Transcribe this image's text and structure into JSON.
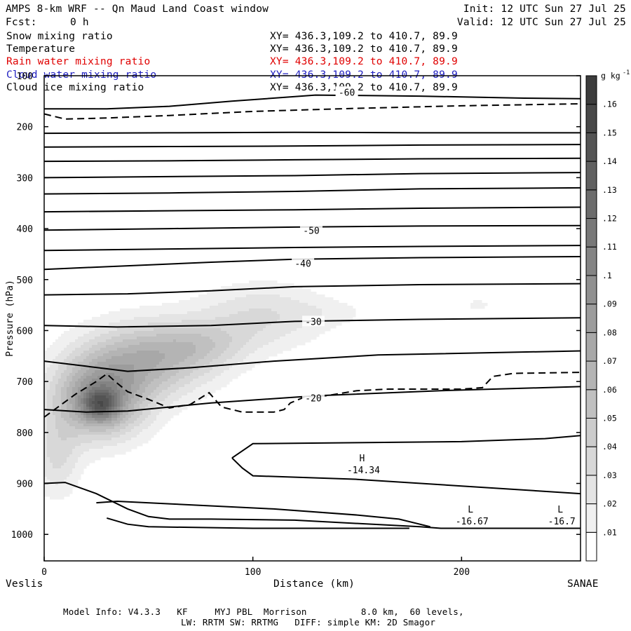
{
  "header": {
    "title": "AMPS 8-km WRF -- Qn Maud Land Coast window",
    "fcst_label": "Fcst:",
    "fcst_value": "0 h",
    "init": "Init: 12 UTC Sun 27 Jul 25",
    "valid": "Valid: 12 UTC Sun 27 Jul 25"
  },
  "fields": [
    {
      "name": "Snow mixing ratio",
      "xy": "XY= 436.3,109.2 to 410.7, 89.9",
      "color": "#000000"
    },
    {
      "name": "Temperature",
      "xy": "XY= 436.3,109.2 to 410.7, 89.9",
      "color": "#000000"
    },
    {
      "name": "Rain water mixing ratio",
      "xy": "XY= 436.3,109.2 to 410.7, 89.9",
      "color": "#e00000"
    },
    {
      "name": "Cloud water mixing ratio",
      "xy": "XY= 436.3,109.2 to 410.7, 89.9",
      "color": "#2020c0"
    },
    {
      "name": "Cloud ice mixing ratio",
      "xy": "XY= 436.3,109.2 to 410.7, 89.9",
      "color": "#000000"
    }
  ],
  "chart_data": {
    "type": "heatmap",
    "xlabel": "Distance (km)",
    "ylabel": "Pressure (hPa)",
    "xlim": [
      0,
      257
    ],
    "ylim": [
      1050,
      100
    ],
    "x_ticks": [
      0,
      100,
      200
    ],
    "y_ticks": [
      100,
      200,
      300,
      400,
      500,
      600,
      700,
      800,
      900,
      1000
    ],
    "x_endpoints": {
      "left": "Veslis",
      "right": "SANAE"
    },
    "colorbar": {
      "unit": "g kg",
      "unit_exp": "-1",
      "levels": [
        0.01,
        0.02,
        0.03,
        0.04,
        0.05,
        0.06,
        0.07,
        0.08,
        0.09,
        0.1,
        0.11,
        0.12,
        0.13,
        0.14,
        0.15,
        0.16
      ],
      "labels": [
        ".01",
        ".02",
        ".03",
        ".04",
        ".05",
        ".06",
        ".07",
        ".08",
        ".09",
        ".1",
        ".11",
        ".12",
        ".13",
        ".14",
        ".15",
        ".16"
      ]
    },
    "snow_mixing_ratio_blobs": [
      {
        "x": 27,
        "p": 745,
        "sx": 6,
        "sp": 22,
        "peak": 0.06
      },
      {
        "x": 26,
        "p": 735,
        "sx": 16,
        "sp": 55,
        "peak": 0.085
      },
      {
        "x": 50,
        "p": 655,
        "sx": 22,
        "sp": 52,
        "peak": 0.06
      },
      {
        "x": 77,
        "p": 628,
        "sx": 16,
        "sp": 32,
        "peak": 0.025
      },
      {
        "x": 105,
        "p": 570,
        "sx": 22,
        "sp": 45,
        "peak": 0.03
      },
      {
        "x": 140,
        "p": 565,
        "sx": 14,
        "sp": 18,
        "peak": 0.008
      },
      {
        "x": 6,
        "p": 850,
        "sx": 8,
        "sp": 55,
        "peak": 0.03
      },
      {
        "x": 208,
        "p": 550,
        "sx": 7,
        "sp": 13,
        "peak": 0.012
      }
    ],
    "temperature_contours": [
      {
        "label": "-60",
        "points": [
          [
            0,
            165
          ],
          [
            30,
            165
          ],
          [
            60,
            160
          ],
          [
            90,
            150
          ],
          [
            130,
            138
          ],
          [
            180,
            140
          ],
          [
            230,
            144
          ],
          [
            257,
            145
          ]
        ]
      },
      {
        "label": "",
        "points": [
          [
            0,
            213
          ],
          [
            60,
            212
          ],
          [
            120,
            211
          ],
          [
            180,
            212
          ],
          [
            257,
            212
          ]
        ]
      },
      {
        "label": "",
        "points": [
          [
            0,
            240
          ],
          [
            60,
            239
          ],
          [
            120,
            238
          ],
          [
            180,
            236
          ],
          [
            257,
            235
          ]
        ]
      },
      {
        "label": "",
        "points": [
          [
            0,
            268
          ],
          [
            60,
            267
          ],
          [
            120,
            265
          ],
          [
            180,
            263
          ],
          [
            257,
            262
          ]
        ]
      },
      {
        "label": "",
        "points": [
          [
            0,
            300
          ],
          [
            60,
            298
          ],
          [
            120,
            296
          ],
          [
            180,
            292
          ],
          [
            257,
            290
          ]
        ]
      },
      {
        "label": "",
        "points": [
          [
            0,
            332
          ],
          [
            60,
            330
          ],
          [
            120,
            327
          ],
          [
            180,
            322
          ],
          [
            257,
            320
          ]
        ]
      },
      {
        "label": "",
        "points": [
          [
            0,
            367
          ],
          [
            60,
            365
          ],
          [
            120,
            363
          ],
          [
            180,
            360
          ],
          [
            257,
            358
          ]
        ]
      },
      {
        "label": "-50",
        "points": [
          [
            0,
            403
          ],
          [
            60,
            400
          ],
          [
            120,
            397
          ],
          [
            180,
            395
          ],
          [
            257,
            394
          ]
        ]
      },
      {
        "label": "",
        "points": [
          [
            0,
            443
          ],
          [
            60,
            440
          ],
          [
            120,
            437
          ],
          [
            180,
            435
          ],
          [
            257,
            433
          ]
        ]
      },
      {
        "label": "-40",
        "points": [
          [
            0,
            480
          ],
          [
            40,
            473
          ],
          [
            80,
            466
          ],
          [
            120,
            460
          ],
          [
            180,
            457
          ],
          [
            257,
            455
          ]
        ]
      },
      {
        "label": "",
        "points": [
          [
            0,
            530
          ],
          [
            40,
            528
          ],
          [
            80,
            522
          ],
          [
            120,
            514
          ],
          [
            180,
            510
          ],
          [
            257,
            508
          ]
        ]
      },
      {
        "label": "-30",
        "points": [
          [
            0,
            590
          ],
          [
            35,
            593
          ],
          [
            80,
            590
          ],
          [
            120,
            582
          ],
          [
            180,
            578
          ],
          [
            257,
            575
          ]
        ]
      },
      {
        "label": "",
        "points": [
          [
            0,
            660
          ],
          [
            20,
            670
          ],
          [
            40,
            680
          ],
          [
            70,
            673
          ],
          [
            110,
            660
          ],
          [
            160,
            648
          ],
          [
            257,
            640
          ]
        ]
      },
      {
        "label": "-20",
        "points": [
          [
            0,
            755
          ],
          [
            20,
            760
          ],
          [
            40,
            758
          ],
          [
            80,
            742
          ],
          [
            130,
            728
          ],
          [
            190,
            718
          ],
          [
            257,
            710
          ]
        ]
      },
      {
        "label": "",
        "points": [
          [
            90,
            850
          ],
          [
            100,
            822
          ],
          [
            150,
            820
          ],
          [
            200,
            818
          ],
          [
            240,
            812
          ],
          [
            257,
            806
          ]
        ]
      },
      {
        "label": "",
        "points": [
          [
            90,
            850
          ],
          [
            95,
            870
          ],
          [
            100,
            885
          ],
          [
            150,
            892
          ],
          [
            200,
            905
          ],
          [
            257,
            920
          ]
        ]
      },
      {
        "label": "",
        "points": [
          [
            0,
            900
          ],
          [
            10,
            898
          ],
          [
            25,
            920
          ],
          [
            40,
            950
          ],
          [
            50,
            965
          ],
          [
            60,
            970
          ],
          [
            80,
            970
          ],
          [
            120,
            972
          ],
          [
            180,
            985
          ],
          [
            190,
            988
          ],
          [
            257,
            988
          ]
        ]
      },
      {
        "label": "",
        "points": [
          [
            25,
            938
          ],
          [
            35,
            935
          ],
          [
            60,
            940
          ],
          [
            110,
            950
          ],
          [
            150,
            962
          ],
          [
            170,
            970
          ],
          [
            185,
            985
          ]
        ]
      },
      {
        "label": "",
        "points": [
          [
            30,
            968
          ],
          [
            40,
            980
          ],
          [
            50,
            985
          ],
          [
            100,
            988
          ],
          [
            140,
            988
          ],
          [
            175,
            988
          ]
        ]
      }
    ],
    "dashed_contour": [
      {
        "points": [
          [
            0,
            175
          ],
          [
            10,
            185
          ],
          [
            30,
            183
          ],
          [
            60,
            178
          ],
          [
            100,
            170
          ],
          [
            150,
            164
          ],
          [
            200,
            159
          ],
          [
            257,
            155
          ]
        ]
      },
      {
        "points": [
          [
            0,
            770
          ],
          [
            15,
            725
          ],
          [
            25,
            700
          ],
          [
            30,
            685
          ],
          [
            34,
            700
          ],
          [
            40,
            720
          ],
          [
            50,
            735
          ],
          [
            60,
            752
          ],
          [
            70,
            745
          ],
          [
            79,
            722
          ],
          [
            85,
            750
          ],
          [
            95,
            760
          ],
          [
            110,
            760
          ],
          [
            115,
            755
          ],
          [
            118,
            742
          ],
          [
            125,
            730
          ],
          [
            135,
            728
          ],
          [
            150,
            718
          ],
          [
            165,
            715
          ],
          [
            200,
            715
          ],
          [
            210,
            712
          ],
          [
            215,
            690
          ],
          [
            225,
            684
          ],
          [
            257,
            682
          ]
        ]
      }
    ],
    "highs_lows": [
      {
        "type": "H",
        "value": "-14.34",
        "x": 153,
        "p": 865
      },
      {
        "type": "L",
        "value": "-16.67",
        "x": 205,
        "p": 965
      },
      {
        "type": "L",
        "value": "-16.7",
        "x": 248,
        "p": 965
      }
    ]
  },
  "footer": {
    "line1": "Model Info: V4.3.3   KF     MYJ PBL  Morrison          8.0 km,  60 levels,",
    "line2": "LW: RRTM SW: RRTMG   DIFF: simple KM: 2D Smagor"
  }
}
